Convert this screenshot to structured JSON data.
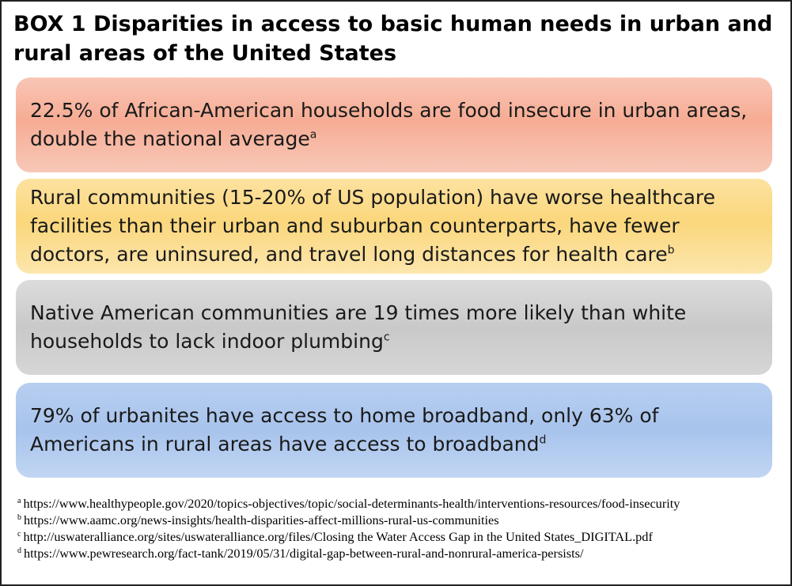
{
  "box": {
    "title": "BOX 1 Disparities in access to basic human needs in urban and rural areas of the United States"
  },
  "panels": [
    {
      "text": "22.5% of African-American households are food insecure in urban areas, double the national average",
      "note_mark": "a",
      "color": "#f6ac94"
    },
    {
      "text": "Rural communities (15-20% of US population) have worse healthcare facilities than their urban and suburban counterparts, have fewer doctors, are uninsured, and travel long distances for health care",
      "note_mark": "b",
      "color": "#fbd77c"
    },
    {
      "text": "Native American communities are 19 times more likely than white households to lack indoor plumbing",
      "note_mark": "c",
      "color": "#c9c9c9"
    },
    {
      "text": "79% of urbanites have access to home broadband, only 63% of Americans in rural areas have access to broadband",
      "note_mark": "d",
      "color": "#a8c3ec"
    }
  ],
  "footnotes": [
    {
      "mark": "a",
      "text": "https://www.healthypeople.gov/2020/topics-objectives/topic/social-determinants-health/interventions-resources/food-insecurity"
    },
    {
      "mark": "b",
      "text": "https://www.aamc.org/news-insights/health-disparities-affect-millions-rural-us-communities"
    },
    {
      "mark": "c",
      "text": "http://uswateralliance.org/sites/uswateralliance.org/files/Closing the Water Access Gap in the United States_DIGITAL.pdf"
    },
    {
      "mark": "d",
      "text": "https://www.pewresearch.org/fact-tank/2019/05/31/digital-gap-between-rural-and-nonrural-america-persists/"
    }
  ]
}
